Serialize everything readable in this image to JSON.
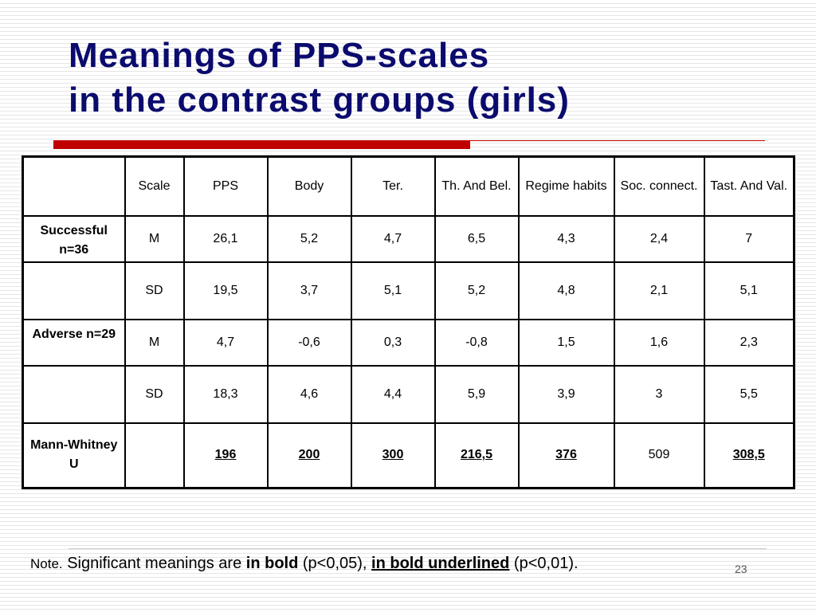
{
  "title": {
    "line1": "Meanings of PPS-scales",
    "line2": "in the contrast groups (girls)"
  },
  "table": {
    "header": [
      "",
      "Scale",
      "PPS",
      "Body",
      "Ter.",
      "Th. And Bel.",
      "Regime habits",
      "Soc. connect.",
      "Tast. And Val."
    ],
    "rows": [
      {
        "label": "Successful n=36",
        "scale": "M",
        "values": [
          "26,1",
          "5,2",
          "4,7",
          "6,5",
          "4,3",
          "2,4",
          "7"
        ]
      },
      {
        "label": "",
        "scale": "SD",
        "values": [
          "19,5",
          "3,7",
          "5,1",
          "5,2",
          "4,8",
          "2,1",
          "5,1"
        ]
      },
      {
        "label": "Adverse n=29",
        "scale": "M",
        "values": [
          "4,7",
          "-0,6",
          "0,3",
          "-0,8",
          "1,5",
          "1,6",
          "2,3"
        ]
      },
      {
        "label": "",
        "scale": "SD",
        "values": [
          "18,3",
          "4,6",
          "4,4",
          "5,9",
          "3,9",
          "3",
          "5,5"
        ]
      },
      {
        "label": "Mann-Whitney U",
        "scale": "",
        "values": [
          "196",
          "200",
          "300",
          "216,5",
          "376",
          "509",
          "308,5"
        ]
      }
    ]
  },
  "note": {
    "prefix": "Note.",
    "text1": " Significant meanings are ",
    "bold": "in bold",
    "text2": " (p<0,05), ",
    "bold_underlined": "in bold underlined",
    "text3": " (p<0,01)."
  },
  "slide_number": "23",
  "colors": {
    "title": "#0b0b6e",
    "accent": "#c00000"
  }
}
